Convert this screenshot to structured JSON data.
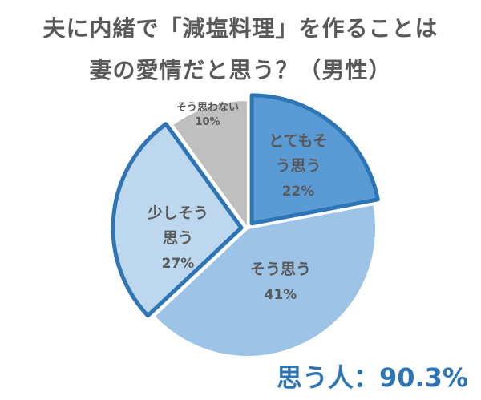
{
  "title": {
    "line1": "夫に内緒で「減塩料理」を作ることは",
    "line2": "妻の愛情だと思う？（男性）"
  },
  "chart_data": {
    "type": "pie",
    "slices": [
      {
        "label_lines": [
          "とてもそ",
          "う思う"
        ],
        "value": 22,
        "value_label": "22%",
        "color": "#5B9BD5",
        "exploded": true
      },
      {
        "label_lines": [
          "そう思う"
        ],
        "value": 41,
        "value_label": "41%",
        "color": "#9DC3E6",
        "exploded": false
      },
      {
        "label_lines": [
          "少しそう",
          "思う"
        ],
        "value": 27,
        "value_label": "27%",
        "color": "#BDD7EE",
        "exploded": true
      },
      {
        "label_lines": [
          "そう思わない"
        ],
        "value": 10,
        "value_label": "10%",
        "color": "#BFBFBF",
        "exploded": false
      }
    ],
    "legend": "none"
  },
  "summary": "思う人：90.3%"
}
